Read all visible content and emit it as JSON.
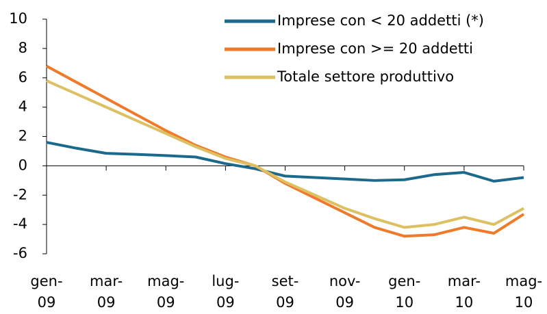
{
  "chart_data": {
    "type": "line",
    "categories": [
      "gen-\n09",
      null,
      "mar-\n09",
      null,
      "mag-\n09",
      null,
      "lug-\n09",
      null,
      "set-\n09",
      null,
      "nov-\n09",
      null,
      "gen-\n10",
      null,
      "mar-\n10",
      null,
      "mag-\n10"
    ],
    "series": [
      {
        "name": "Imprese con < 20 addetti (*)",
        "color": "#1b6a8c",
        "values": [
          1.6,
          1.2,
          0.85,
          0.78,
          0.7,
          0.6,
          0.15,
          -0.2,
          -0.7,
          -0.8,
          -0.9,
          -1.0,
          -0.95,
          -0.6,
          -0.45,
          -1.05,
          -0.8
        ]
      },
      {
        "name": "Imprese con >= 20 addetti",
        "color": "#ef7a2a",
        "values": [
          6.8,
          5.7,
          4.6,
          3.5,
          2.4,
          1.4,
          0.6,
          0,
          -1.2,
          -2.2,
          -3.2,
          -4.2,
          -4.8,
          -4.7,
          -4.2,
          -4.6,
          -3.3
        ]
      },
      {
        "name": "Totale settore produttivo",
        "color": "#dcc062",
        "values": [
          5.8,
          4.9,
          4.0,
          3.1,
          2.2,
          1.3,
          0.5,
          0,
          -1.1,
          -2.0,
          -2.9,
          -3.6,
          -4.2,
          -4.0,
          -3.5,
          -4.0,
          -2.9
        ]
      }
    ],
    "ylim": [
      -6,
      10
    ],
    "yticks": [
      -6,
      -4,
      -2,
      0,
      2,
      4,
      6,
      8,
      10
    ],
    "legend": "top-right"
  }
}
